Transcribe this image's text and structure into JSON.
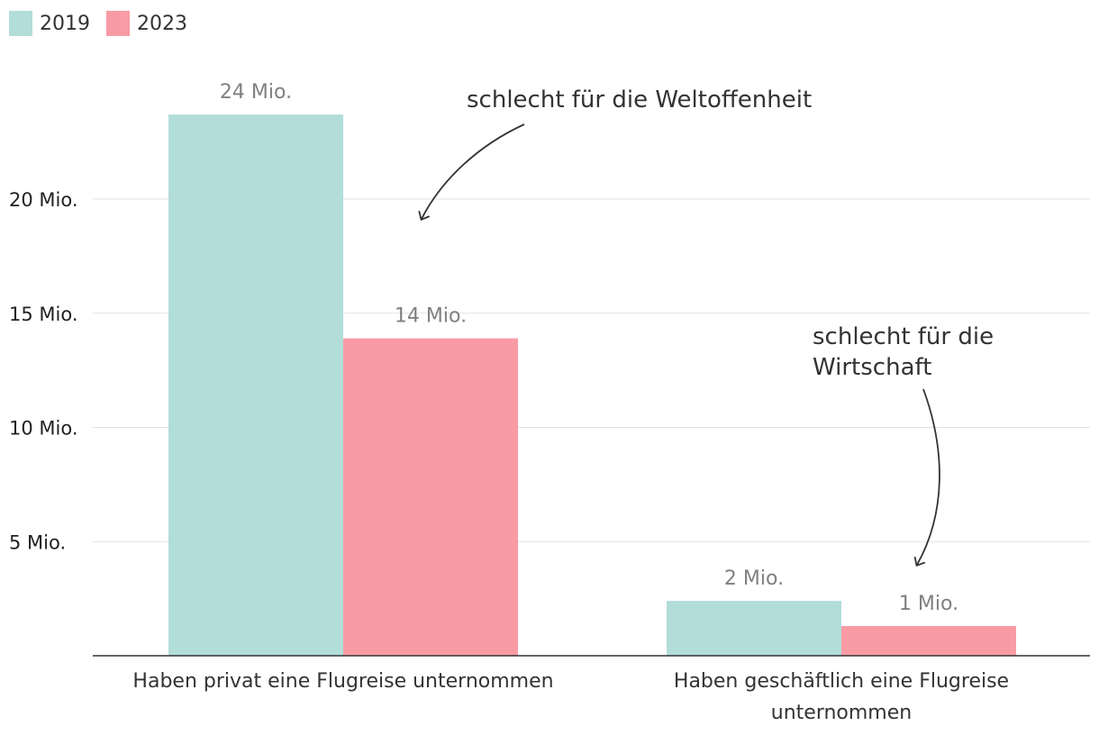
{
  "legend": [
    {
      "label": "2019",
      "color": "#b2ddd9"
    },
    {
      "label": "2023",
      "color": "#f89ba5"
    }
  ],
  "annotations": [
    {
      "lines": [
        "schlecht für die Weltoffenheit"
      ]
    },
    {
      "lines": [
        "schlecht für die",
        "Wirtschaft"
      ]
    }
  ],
  "chart_data": {
    "type": "bar",
    "categories": [
      [
        "Haben privat eine Flugreise unternommen"
      ],
      [
        "Haben geschäftlich eine Flugreise",
        "unternommen"
      ]
    ],
    "series": [
      {
        "name": "2019",
        "color": "#b2ddd9",
        "values": [
          23.7,
          2.4
        ],
        "labels": [
          "24 Mio.",
          "2 Mio."
        ]
      },
      {
        "name": "2023",
        "color": "#f89ba5",
        "values": [
          13.9,
          1.3
        ],
        "labels": [
          "14 Mio.",
          "1 Mio."
        ]
      }
    ],
    "yticks": [
      {
        "value": 5,
        "label": "5 Mio."
      },
      {
        "value": 10,
        "label": "10 Mio."
      },
      {
        "value": 15,
        "label": "15 Mio."
      },
      {
        "value": 20,
        "label": "20 Mio."
      }
    ],
    "ylim": [
      0,
      27
    ],
    "grid": true,
    "legend_position": "top-left"
  }
}
